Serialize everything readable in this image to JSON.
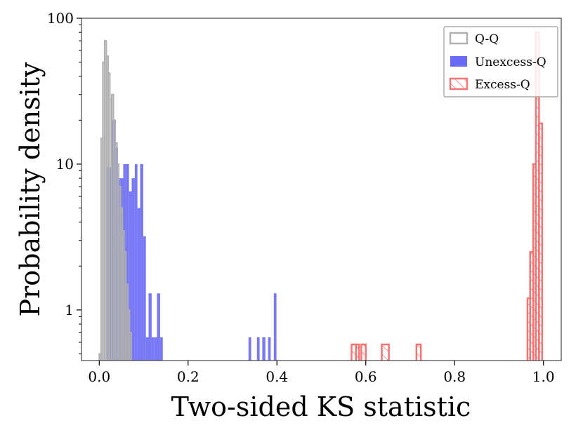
{
  "chart_data": {
    "type": "histogram",
    "title": "",
    "xlabel": "Two-sided KS statistic",
    "ylabel": "Probability density",
    "xlim": [
      -0.04,
      1.04
    ],
    "ylim": [
      0.45,
      100
    ],
    "yscale": "log",
    "x_ticks": [
      0.0,
      0.2,
      0.4,
      0.6,
      0.8,
      1.0
    ],
    "x_tick_labels": [
      "0.0",
      "0.2",
      "0.4",
      "0.6",
      "0.8",
      "1.0"
    ],
    "y_ticks": [
      1,
      10,
      100
    ],
    "y_tick_labels": [
      "1",
      "10",
      "100"
    ],
    "legend_position": "top-right",
    "colors": {
      "qq": "#b0b0b0",
      "unexcess": "#6a6af4",
      "excess": "#f47474"
    },
    "series": [
      {
        "name": "Q-Q",
        "style": "step-outline",
        "bins": [
          {
            "x0": 0.0,
            "x1": 0.004,
            "y": 0.5
          },
          {
            "x0": 0.004,
            "x1": 0.008,
            "y": 15
          },
          {
            "x0": 0.008,
            "x1": 0.012,
            "y": 50
          },
          {
            "x0": 0.012,
            "x1": 0.016,
            "y": 70
          },
          {
            "x0": 0.016,
            "x1": 0.02,
            "y": 55
          },
          {
            "x0": 0.02,
            "x1": 0.024,
            "y": 42
          },
          {
            "x0": 0.024,
            "x1": 0.028,
            "y": 28
          },
          {
            "x0": 0.028,
            "x1": 0.032,
            "y": 30
          },
          {
            "x0": 0.032,
            "x1": 0.036,
            "y": 20
          },
          {
            "x0": 0.036,
            "x1": 0.04,
            "y": 14
          },
          {
            "x0": 0.04,
            "x1": 0.044,
            "y": 10
          },
          {
            "x0": 0.044,
            "x1": 0.048,
            "y": 7
          },
          {
            "x0": 0.048,
            "x1": 0.052,
            "y": 5
          },
          {
            "x0": 0.052,
            "x1": 0.056,
            "y": 3.5
          },
          {
            "x0": 0.056,
            "x1": 0.06,
            "y": 2.5
          },
          {
            "x0": 0.06,
            "x1": 0.064,
            "y": 1.5
          },
          {
            "x0": 0.064,
            "x1": 0.068,
            "y": 1.0
          },
          {
            "x0": 0.068,
            "x1": 0.072,
            "y": 0.7
          }
        ]
      },
      {
        "name": "Unexcess-Q",
        "style": "filled",
        "bins": [
          {
            "x0": 0.016,
            "x1": 0.022,
            "y": 9.5
          },
          {
            "x0": 0.022,
            "x1": 0.029,
            "y": 9.5
          },
          {
            "x0": 0.029,
            "x1": 0.035,
            "y": 20
          },
          {
            "x0": 0.035,
            "x1": 0.042,
            "y": 13
          },
          {
            "x0": 0.042,
            "x1": 0.048,
            "y": 8
          },
          {
            "x0": 0.048,
            "x1": 0.054,
            "y": 8
          },
          {
            "x0": 0.054,
            "x1": 0.061,
            "y": 10
          },
          {
            "x0": 0.061,
            "x1": 0.067,
            "y": 10
          },
          {
            "x0": 0.067,
            "x1": 0.073,
            "y": 6.5
          },
          {
            "x0": 0.073,
            "x1": 0.08,
            "y": 8
          },
          {
            "x0": 0.08,
            "x1": 0.086,
            "y": 10
          },
          {
            "x0": 0.086,
            "x1": 0.092,
            "y": 5
          },
          {
            "x0": 0.092,
            "x1": 0.099,
            "y": 10
          },
          {
            "x0": 0.099,
            "x1": 0.105,
            "y": 3.2
          },
          {
            "x0": 0.105,
            "x1": 0.111,
            "y": 0.65
          },
          {
            "x0": 0.111,
            "x1": 0.118,
            "y": 1.3
          },
          {
            "x0": 0.118,
            "x1": 0.124,
            "y": 0.65
          },
          {
            "x0": 0.124,
            "x1": 0.13,
            "y": 0.65
          },
          {
            "x0": 0.13,
            "x1": 0.137,
            "y": 1.3
          },
          {
            "x0": 0.137,
            "x1": 0.143,
            "y": 0.65
          },
          {
            "x0": 0.336,
            "x1": 0.342,
            "y": 0.65
          },
          {
            "x0": 0.355,
            "x1": 0.361,
            "y": 0.65
          },
          {
            "x0": 0.367,
            "x1": 0.374,
            "y": 0.65
          },
          {
            "x0": 0.38,
            "x1": 0.386,
            "y": 0.65
          },
          {
            "x0": 0.393,
            "x1": 0.399,
            "y": 1.3
          }
        ]
      },
      {
        "name": "Excess-Q",
        "style": "hatched",
        "bins": [
          {
            "x0": 0.568,
            "x1": 0.578,
            "y": 0.58
          },
          {
            "x0": 0.578,
            "x1": 0.585,
            "y": 0.58
          },
          {
            "x0": 0.59,
            "x1": 0.6,
            "y": 0.58
          },
          {
            "x0": 0.636,
            "x1": 0.652,
            "y": 0.58
          },
          {
            "x0": 0.714,
            "x1": 0.724,
            "y": 0.58
          },
          {
            "x0": 0.964,
            "x1": 0.97,
            "y": 1.2
          },
          {
            "x0": 0.97,
            "x1": 0.977,
            "y": 2.5
          },
          {
            "x0": 0.977,
            "x1": 0.983,
            "y": 10
          },
          {
            "x0": 0.983,
            "x1": 0.99,
            "y": 80
          },
          {
            "x0": 0.99,
            "x1": 0.997,
            "y": 19
          }
        ]
      }
    ]
  }
}
